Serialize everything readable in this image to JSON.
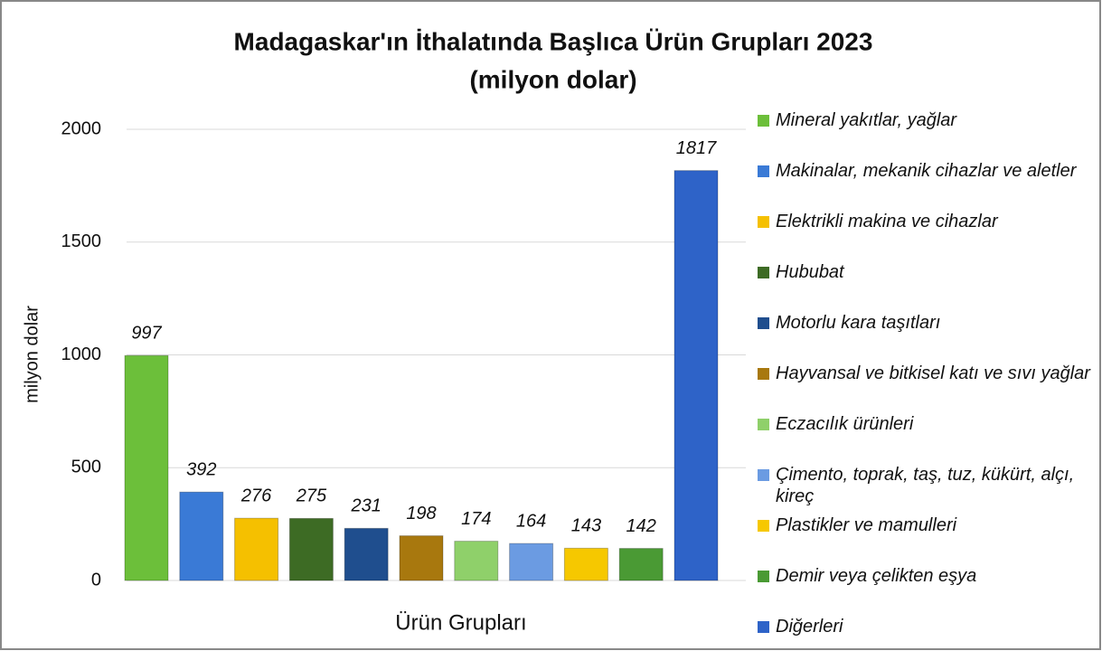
{
  "chart_data": {
    "type": "bar",
    "title": "Madagaskar'ın İthalatında Başlıca Ürün Grupları 2023",
    "subtitle": "(milyon dolar)",
    "y_label": "milyon dolar",
    "x_label": "Ürün Grupları",
    "categories": [
      "Mineral yakıtlar, yağlar",
      "Makinalar, mekanik cihazlar ve aletler",
      "Elektrikli makina ve cihazlar",
      "Hububat",
      "Motorlu kara taşıtları",
      "Hayvansal ve bitkisel katı ve sıvı yağlar",
      "Eczacılık ürünleri",
      "Çimento, toprak, taş, tuz, kükürt, alçı, kireç",
      "Plastikler ve mamulleri",
      "Demir veya çelikten eşya",
      "Diğerleri"
    ],
    "values": [
      997,
      392,
      276,
      275,
      231,
      198,
      174,
      164,
      143,
      142,
      1817
    ],
    "colors": [
      "#6cbf3a",
      "#3a7ad6",
      "#f5c000",
      "#3d6b24",
      "#1f4e8e",
      "#a8780e",
      "#8fd06a",
      "#6b9be2",
      "#f6c800",
      "#4a9a34",
      "#2e63c8"
    ],
    "ylim": [
      0,
      2000
    ],
    "yticks": [
      0,
      500,
      1000,
      1500,
      2000
    ],
    "grid": true,
    "legend": "right"
  }
}
